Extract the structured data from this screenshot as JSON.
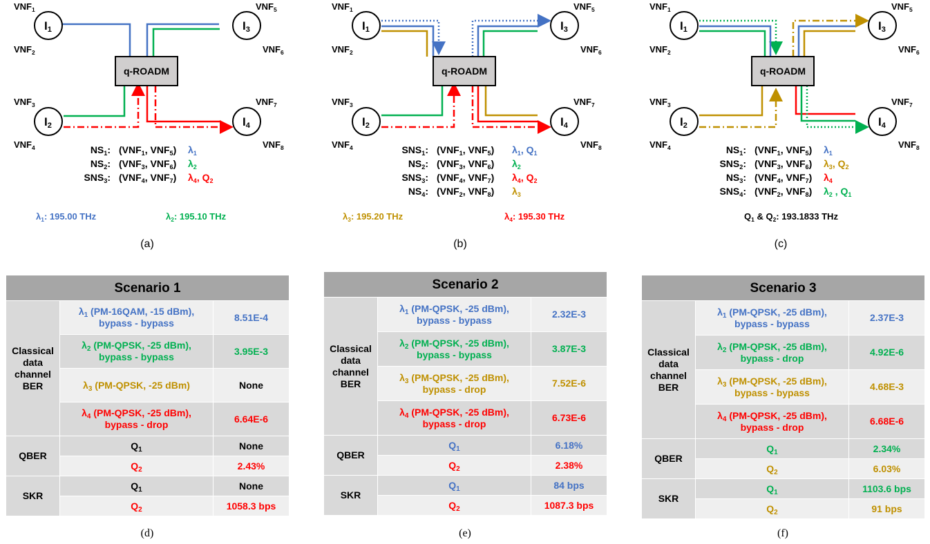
{
  "node_labels": [
    "I1",
    "I2",
    "I3",
    "I4"
  ],
  "vnf_labels": [
    "VNF1",
    "VNF2",
    "VNF3",
    "VNF4",
    "VNF5",
    "VNF6",
    "VNF7",
    "VNF8"
  ],
  "roadm_label": "q-ROADM",
  "colors": {
    "lambda1": "#4472c4",
    "lambda2": "#00b050",
    "lambda3": "#bf9000",
    "lambda4": "#ff0000",
    "header": "#a6a6a6"
  },
  "panels": [
    {
      "caption": "(a)",
      "services": [
        {
          "name": "NS1:",
          "pair": "(VNF1, VNF5)",
          "resources": [
            {
              "t": "λ1",
              "c": "lambda1"
            }
          ]
        },
        {
          "name": "NS2:",
          "pair": "(VNF3, VNF6)",
          "resources": [
            {
              "t": "λ2",
              "c": "lambda2"
            }
          ]
        },
        {
          "name": "SNS3:",
          "pair": "(VNF4, VNF7)",
          "resources": [
            {
              "t": "λ4, Q2",
              "c": "lambda4"
            }
          ]
        }
      ],
      "freq_notes": [
        {
          "t": "λ1: 195.00 THz",
          "c": "lambda1"
        },
        {
          "t": "λ2: 195.10 THz",
          "c": "lambda2"
        }
      ]
    },
    {
      "caption": "(b)",
      "services": [
        {
          "name": "SNS1:",
          "pair": "(VNF1, VNF5)",
          "resources": [
            {
              "t": "λ1, Q1",
              "c": "lambda1"
            }
          ]
        },
        {
          "name": "NS2:",
          "pair": "(VNF3, VNF6)",
          "resources": [
            {
              "t": "λ2",
              "c": "lambda2"
            }
          ]
        },
        {
          "name": "SNS3:",
          "pair": "(VNF4, VNF7)",
          "resources": [
            {
              "t": "λ4, Q2",
              "c": "lambda4"
            }
          ]
        },
        {
          "name": "NS4:",
          "pair": "(VNF2, VNF8)",
          "resources": [
            {
              "t": "λ3",
              "c": "lambda3"
            }
          ]
        }
      ],
      "freq_notes": [
        {
          "t": "λ3: 195.20 THz",
          "c": "lambda3"
        },
        {
          "t": "λ4: 195.30 THz",
          "c": "lambda4"
        }
      ]
    },
    {
      "caption": "(c)",
      "services": [
        {
          "name": "NS1:",
          "pair": "(VNF1, VNF5)",
          "resources": [
            {
              "t": "λ1",
              "c": "lambda1"
            }
          ]
        },
        {
          "name": "SNS2:",
          "pair": "(VNF3, VNF6)",
          "resources": [
            {
              "t": "λ3, Q2",
              "c": "lambda3"
            }
          ]
        },
        {
          "name": "NS3:",
          "pair": "(VNF4, VNF7)",
          "resources": [
            {
              "t": "λ4",
              "c": "lambda4"
            }
          ]
        },
        {
          "name": "SNS4:",
          "pair": "(VNF2, VNF8)",
          "resources": [
            {
              "t": "λ2 , Q1",
              "c": "lambda2"
            }
          ]
        }
      ],
      "freq_notes": [
        {
          "t": "Q1 & Q2: 193.1833 THz",
          "c": "black"
        }
      ]
    }
  ],
  "tables": [
    {
      "caption": "(d)",
      "title": "Scenario 1",
      "classical_label": "Classical data channel BER",
      "classical": [
        {
          "label": "λ1 (PM-16QAM, -15 dBm), bypass - bypass",
          "value": "8.51E-4",
          "c": "blue"
        },
        {
          "label": "λ2 (PM-QPSK, -25 dBm), bypass - bypass",
          "value": "3.95E-3",
          "c": "green"
        },
        {
          "label": "λ3 (PM-QPSK, -25 dBm)",
          "value": "None",
          "c": "gold",
          "vc": "black"
        },
        {
          "label": "λ4 (PM-QPSK, -25 dBm), bypass - drop",
          "value": "6.64E-6",
          "c": "red"
        }
      ],
      "qber_label": "QBER",
      "qber": [
        {
          "label": "Q1",
          "value": "None",
          "c": "black"
        },
        {
          "label": "Q2",
          "value": "2.43%",
          "c": "red"
        }
      ],
      "skr_label": "SKR",
      "skr": [
        {
          "label": "Q1",
          "value": "None",
          "c": "black"
        },
        {
          "label": "Q2",
          "value": "1058.3 bps",
          "c": "red"
        }
      ]
    },
    {
      "caption": "(e)",
      "title": "Scenario 2",
      "classical_label": "Classical data channel BER",
      "classical": [
        {
          "label": "λ1 (PM-QPSK, -25 dBm), bypass - bypass",
          "value": "2.32E-3",
          "c": "blue"
        },
        {
          "label": "λ2 (PM-QPSK, -25 dBm), bypass - bypass",
          "value": "3.87E-3",
          "c": "green"
        },
        {
          "label": "λ3 (PM-QPSK, -25 dBm), bypass - drop",
          "value": "7.52E-6",
          "c": "gold"
        },
        {
          "label": "λ4 (PM-QPSK, -25 dBm), bypass - drop",
          "value": "6.73E-6",
          "c": "red"
        }
      ],
      "qber_label": "QBER",
      "qber": [
        {
          "label": "Q1",
          "value": "6.18%",
          "c": "blue"
        },
        {
          "label": "Q2",
          "value": "2.38%",
          "c": "red"
        }
      ],
      "skr_label": "SKR",
      "skr": [
        {
          "label": "Q1",
          "value": "84 bps",
          "c": "blue"
        },
        {
          "label": "Q2",
          "value": "1087.3 bps",
          "c": "red"
        }
      ]
    },
    {
      "caption": "(f)",
      "title": "Scenario 3",
      "classical_label": "Classical data channel BER",
      "classical": [
        {
          "label": "λ1 (PM-QPSK, -25 dBm), bypass - bypass",
          "value": "2.37E-3",
          "c": "blue"
        },
        {
          "label": "λ2 (PM-QPSK, -25 dBm), bypass - drop",
          "value": "4.92E-6",
          "c": "green"
        },
        {
          "label": "λ3 (PM-QPSK, -25 dBm), bypass - bypass",
          "value": "4.68E-3",
          "c": "gold"
        },
        {
          "label": "λ4 (PM-QPSK, -25 dBm), bypass - drop",
          "value": "6.68E-6",
          "c": "red"
        }
      ],
      "qber_label": "QBER",
      "qber": [
        {
          "label": "Q1",
          "value": "2.34%",
          "c": "green"
        },
        {
          "label": "Q2",
          "value": "6.03%",
          "c": "gold"
        }
      ],
      "skr_label": "SKR",
      "skr": [
        {
          "label": "Q1",
          "value": "1103.6 bps",
          "c": "green"
        },
        {
          "label": "Q2",
          "value": "91 bps",
          "c": "gold"
        }
      ]
    }
  ]
}
